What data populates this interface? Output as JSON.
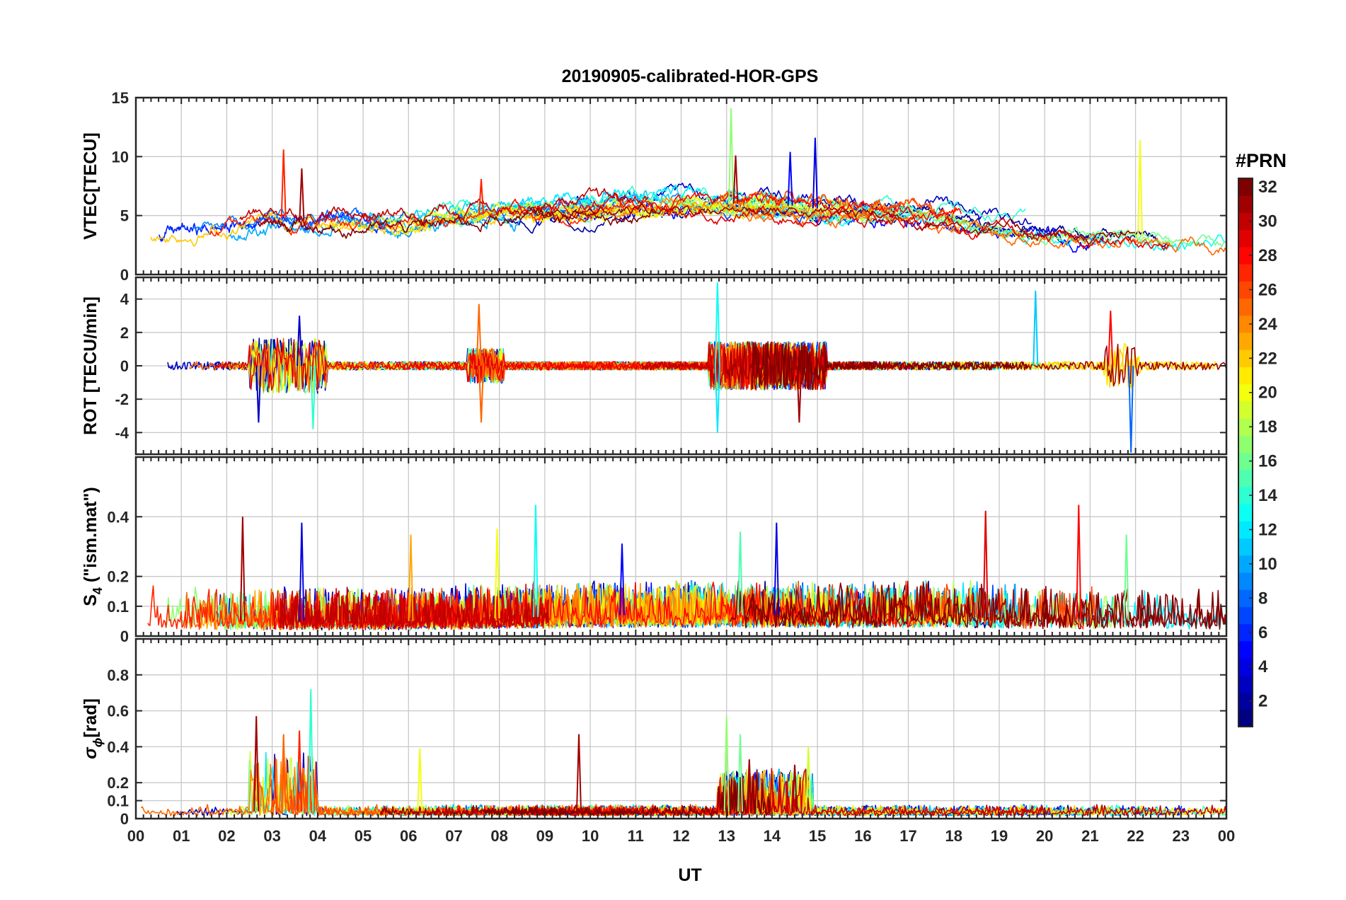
{
  "chart_data": {
    "type": "line",
    "title": "20190905-calibrated-HOR-GPS",
    "xlabel": "UT",
    "x_tick_labels": [
      "00",
      "01",
      "02",
      "03",
      "04",
      "05",
      "06",
      "07",
      "08",
      "09",
      "10",
      "11",
      "12",
      "13",
      "14",
      "15",
      "16",
      "17",
      "18",
      "19",
      "20",
      "21",
      "22",
      "23",
      "00"
    ],
    "xlim": [
      0,
      24
    ],
    "grid": true,
    "panels": [
      {
        "id": "vtec",
        "ylabel": "VTEC[TECU]",
        "ylim": [
          0,
          15
        ],
        "yticks": [
          0,
          5,
          10,
          15
        ],
        "series_style": "trend",
        "baseline_profile": [
          [
            0,
            3.2
          ],
          [
            2,
            3.8
          ],
          [
            3,
            4.8
          ],
          [
            4,
            4.5
          ],
          [
            6,
            4.4
          ],
          [
            8,
            5.3
          ],
          [
            10,
            5.5
          ],
          [
            12,
            6.0
          ],
          [
            14,
            6.0
          ],
          [
            15,
            5.6
          ],
          [
            17,
            5.3
          ],
          [
            19,
            4.2
          ],
          [
            21,
            3.4
          ],
          [
            23,
            3.1
          ],
          [
            24,
            3.1
          ]
        ],
        "noise_amplitude": 0.6,
        "spikes": [
          {
            "x": 3.25,
            "y": 10.6,
            "prn": 27
          },
          {
            "x": 3.65,
            "y": 9.0,
            "prn": 31
          },
          {
            "x": 7.6,
            "y": 8.1,
            "prn": 27
          },
          {
            "x": 13.1,
            "y": 14.1,
            "prn": 17
          },
          {
            "x": 13.2,
            "y": 10.1,
            "prn": 31
          },
          {
            "x": 14.4,
            "y": 10.4,
            "prn": 5
          },
          {
            "x": 14.95,
            "y": 11.6,
            "prn": 4
          },
          {
            "x": 22.1,
            "y": 11.4,
            "prn": 20
          }
        ]
      },
      {
        "id": "rot",
        "ylabel": "ROT [TECU/min]",
        "ylim": [
          -5.3,
          5.3
        ],
        "yticks": [
          -4,
          -2,
          0,
          2,
          4
        ],
        "series_style": "noise",
        "baseline_profile": [
          [
            0,
            0
          ],
          [
            24,
            0
          ]
        ],
        "noise_amplitude": 0.25,
        "active_windows": [
          [
            2.5,
            4.2,
            1.4
          ],
          [
            7.3,
            8.1,
            0.8
          ],
          [
            12.6,
            15.2,
            1.2
          ],
          [
            21.3,
            22.1,
            1.1
          ]
        ],
        "spikes": [
          {
            "x": 3.6,
            "y": 3.0,
            "prn": 3
          },
          {
            "x": 2.7,
            "y": -3.4,
            "prn": 3
          },
          {
            "x": 3.9,
            "y": -3.8,
            "prn": 14
          },
          {
            "x": 7.55,
            "y": 3.7,
            "prn": 25
          },
          {
            "x": 7.6,
            "y": -3.4,
            "prn": 25
          },
          {
            "x": 12.8,
            "y": 5.0,
            "prn": 13
          },
          {
            "x": 12.8,
            "y": -4.0,
            "prn": 12
          },
          {
            "x": 14.6,
            "y": -3.4,
            "prn": 31
          },
          {
            "x": 19.8,
            "y": 4.5,
            "prn": 11
          },
          {
            "x": 21.45,
            "y": 3.3,
            "prn": 28
          },
          {
            "x": 21.9,
            "y": -5.2,
            "prn": 8
          }
        ]
      },
      {
        "id": "s4",
        "ylabel": "S_4 (\"ism.mat\")",
        "ylabel_main": "S",
        "ylabel_sub": "4",
        "ylabel_rest": " (\"ism.mat\")",
        "ylim": [
          0,
          0.6
        ],
        "yticks": [
          0,
          0.1,
          0.2,
          0.4
        ],
        "series_style": "positive",
        "baseline_profile": [
          [
            0,
            0.07
          ],
          [
            2,
            0.05
          ],
          [
            6,
            0.05
          ],
          [
            10,
            0.07
          ],
          [
            14,
            0.07
          ],
          [
            18,
            0.07
          ],
          [
            22,
            0.05
          ],
          [
            24,
            0.05
          ]
        ],
        "noise_amplitude": 0.06,
        "spikes": [
          {
            "x": 2.35,
            "y": 0.4,
            "prn": 31
          },
          {
            "x": 3.65,
            "y": 0.38,
            "prn": 4
          },
          {
            "x": 6.05,
            "y": 0.34,
            "prn": 23
          },
          {
            "x": 7.95,
            "y": 0.36,
            "prn": 20
          },
          {
            "x": 8.8,
            "y": 0.44,
            "prn": 13
          },
          {
            "x": 10.7,
            "y": 0.31,
            "prn": 5
          },
          {
            "x": 13.3,
            "y": 0.35,
            "prn": 15
          },
          {
            "x": 14.1,
            "y": 0.38,
            "prn": 4
          },
          {
            "x": 18.7,
            "y": 0.42,
            "prn": 29
          },
          {
            "x": 20.75,
            "y": 0.44,
            "prn": 28
          },
          {
            "x": 21.8,
            "y": 0.34,
            "prn": 16
          }
        ]
      },
      {
        "id": "sigma",
        "ylabel": "σ_ϕ[rad]",
        "ylabel_main": "σ",
        "ylabel_sub": "ϕ",
        "ylabel_rest": "[rad]",
        "ylim": [
          0,
          1.0
        ],
        "yticks": [
          0,
          0.1,
          0.2,
          0.4,
          0.6,
          0.8
        ],
        "series_style": "positive",
        "baseline_profile": [
          [
            0,
            0.04
          ],
          [
            24,
            0.04
          ]
        ],
        "noise_amplitude": 0.02,
        "active_windows": [
          [
            2.5,
            4.0,
            0.15
          ],
          [
            12.8,
            14.9,
            0.1
          ]
        ],
        "spikes": [
          {
            "x": 2.65,
            "y": 0.57,
            "prn": 31
          },
          {
            "x": 3.25,
            "y": 0.47,
            "prn": 25
          },
          {
            "x": 3.6,
            "y": 0.49,
            "prn": 27
          },
          {
            "x": 3.85,
            "y": 0.72,
            "prn": 14
          },
          {
            "x": 6.25,
            "y": 0.39,
            "prn": 20
          },
          {
            "x": 9.75,
            "y": 0.47,
            "prn": 31
          },
          {
            "x": 13.0,
            "y": 0.57,
            "prn": 17
          },
          {
            "x": 13.3,
            "y": 0.47,
            "prn": 16
          },
          {
            "x": 13.5,
            "y": 0.33,
            "prn": 31
          },
          {
            "x": 14.5,
            "y": 0.3,
            "prn": 31
          },
          {
            "x": 14.8,
            "y": 0.4,
            "prn": 19
          }
        ]
      }
    ],
    "colorbar": {
      "title": "#PRN",
      "range": [
        1,
        32
      ],
      "tick_labels": [
        "2",
        "4",
        "6",
        "8",
        "10",
        "12",
        "14",
        "16",
        "18",
        "20",
        "22",
        "24",
        "26",
        "28",
        "30",
        "32"
      ],
      "tick_values": [
        2,
        4,
        6,
        8,
        10,
        12,
        14,
        16,
        18,
        20,
        22,
        24,
        26,
        28,
        30,
        32
      ],
      "colormap": "jet"
    },
    "series": [
      {
        "prn": 1
      },
      {
        "prn": 2
      },
      {
        "prn": 3
      },
      {
        "prn": 4
      },
      {
        "prn": 5
      },
      {
        "prn": 6
      },
      {
        "prn": 7
      },
      {
        "prn": 8
      },
      {
        "prn": 9
      },
      {
        "prn": 10
      },
      {
        "prn": 11
      },
      {
        "prn": 12
      },
      {
        "prn": 13
      },
      {
        "prn": 14
      },
      {
        "prn": 15
      },
      {
        "prn": 16
      },
      {
        "prn": 17
      },
      {
        "prn": 18
      },
      {
        "prn": 19
      },
      {
        "prn": 20
      },
      {
        "prn": 21
      },
      {
        "prn": 22
      },
      {
        "prn": 23
      },
      {
        "prn": 24
      },
      {
        "prn": 25
      },
      {
        "prn": 26
      },
      {
        "prn": 27
      },
      {
        "prn": 28
      },
      {
        "prn": 29
      },
      {
        "prn": 30
      },
      {
        "prn": 31
      },
      {
        "prn": 32
      }
    ]
  }
}
